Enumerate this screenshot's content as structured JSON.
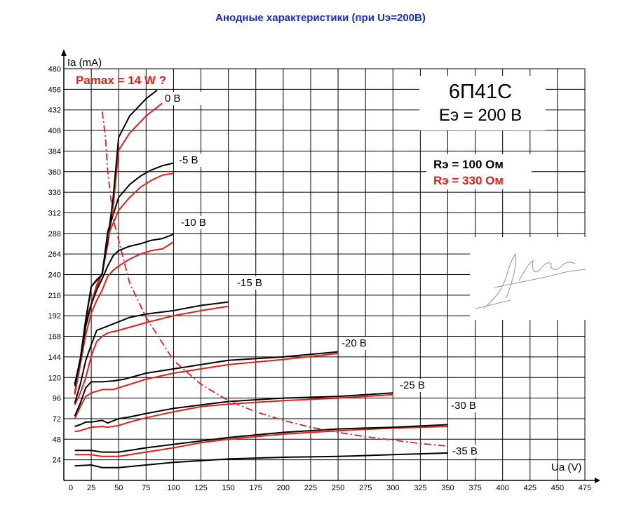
{
  "page": {
    "title": "Анодные характеристики (при Uэ=200В)"
  },
  "chart_data": {
    "type": "line",
    "title": "Анодные характеристики (при Uэ=200В)",
    "xlabel": "Ua (V)",
    "ylabel": "Ia (mA)",
    "xlim": [
      0,
      475
    ],
    "ylim": [
      0,
      480
    ],
    "x_ticks": [
      0,
      25,
      50,
      75,
      100,
      125,
      150,
      175,
      200,
      225,
      250,
      275,
      300,
      325,
      350,
      375,
      400,
      425,
      450,
      475
    ],
    "y_ticks": [
      24,
      48,
      72,
      96,
      120,
      144,
      168,
      192,
      216,
      240,
      264,
      288,
      312,
      336,
      360,
      384,
      408,
      432,
      456,
      480
    ],
    "grid": true,
    "annotations": {
      "tube": "6П41С",
      "supply": "Eэ = 200 В",
      "r_black": "Rэ = 100 Ом",
      "r_red": "Rэ = 330 Ом",
      "pamax": "Pamax = 14 W ?"
    },
    "colors": {
      "black": "#000000",
      "red": "#e0201a",
      "title": "#1a2bbf",
      "grid": "#000000"
    },
    "curves": [
      {
        "label": "0 В",
        "black": [
          [
            10,
            112
          ],
          [
            15,
            142
          ],
          [
            20,
            188
          ],
          [
            25,
            226
          ],
          [
            30,
            234
          ],
          [
            35,
            240
          ],
          [
            40,
            280
          ],
          [
            45,
            330
          ],
          [
            50,
            400
          ],
          [
            60,
            425
          ],
          [
            75,
            445
          ],
          [
            85,
            455
          ]
        ],
        "red": [
          [
            10,
            102
          ],
          [
            15,
            140
          ],
          [
            20,
            185
          ],
          [
            25,
            206
          ],
          [
            30,
            228
          ],
          [
            35,
            242
          ],
          [
            40,
            275
          ],
          [
            45,
            320
          ],
          [
            50,
            385
          ],
          [
            60,
            405
          ],
          [
            75,
            425
          ],
          [
            90,
            440
          ],
          [
            95,
            444
          ]
        ]
      },
      {
        "label": "-5 В",
        "black": [
          [
            10,
            112
          ],
          [
            15,
            140
          ],
          [
            20,
            186
          ],
          [
            25,
            226
          ],
          [
            35,
            240
          ],
          [
            40,
            290
          ],
          [
            45,
            310
          ],
          [
            50,
            330
          ],
          [
            60,
            345
          ],
          [
            70,
            355
          ],
          [
            80,
            362
          ],
          [
            90,
            367
          ],
          [
            100,
            370
          ]
        ],
        "red": [
          [
            10,
            102
          ],
          [
            15,
            140
          ],
          [
            20,
            185
          ],
          [
            25,
            206
          ],
          [
            35,
            242
          ],
          [
            40,
            285
          ],
          [
            45,
            300
          ],
          [
            50,
            315
          ],
          [
            60,
            330
          ],
          [
            70,
            342
          ],
          [
            80,
            350
          ],
          [
            90,
            356
          ],
          [
            100,
            358
          ]
        ]
      },
      {
        "label": "-10 В",
        "black": [
          [
            10,
            110
          ],
          [
            15,
            140
          ],
          [
            20,
            180
          ],
          [
            25,
            205
          ],
          [
            30,
            222
          ],
          [
            35,
            235
          ],
          [
            40,
            250
          ],
          [
            45,
            262
          ],
          [
            50,
            268
          ],
          [
            60,
            273
          ],
          [
            70,
            276
          ],
          [
            80,
            280
          ],
          [
            90,
            282
          ],
          [
            100,
            287
          ]
        ],
        "red": [
          [
            10,
            100
          ],
          [
            15,
            135
          ],
          [
            20,
            170
          ],
          [
            25,
            195
          ],
          [
            30,
            210
          ],
          [
            35,
            222
          ],
          [
            40,
            238
          ],
          [
            45,
            245
          ],
          [
            50,
            250
          ],
          [
            60,
            258
          ],
          [
            70,
            264
          ],
          [
            80,
            268
          ],
          [
            90,
            270
          ],
          [
            100,
            278
          ]
        ]
      },
      {
        "label": "-15 В",
        "black": [
          [
            10,
            90
          ],
          [
            15,
            112
          ],
          [
            20,
            140
          ],
          [
            25,
            158
          ],
          [
            30,
            175
          ],
          [
            40,
            180
          ],
          [
            50,
            185
          ],
          [
            60,
            190
          ],
          [
            75,
            194
          ],
          [
            100,
            198
          ],
          [
            125,
            204
          ],
          [
            150,
            208
          ]
        ],
        "red": [
          [
            10,
            88
          ],
          [
            15,
            102
          ],
          [
            20,
            120
          ],
          [
            25,
            145
          ],
          [
            30,
            162
          ],
          [
            35,
            168
          ],
          [
            40,
            172
          ],
          [
            50,
            175
          ],
          [
            75,
            184
          ],
          [
            100,
            192
          ],
          [
            125,
            198
          ],
          [
            150,
            203
          ]
        ]
      },
      {
        "label": "-20 В",
        "black": [
          [
            10,
            75
          ],
          [
            15,
            90
          ],
          [
            20,
            108
          ],
          [
            25,
            115
          ],
          [
            35,
            115
          ],
          [
            45,
            116
          ],
          [
            55,
            118
          ],
          [
            75,
            125
          ],
          [
            100,
            130
          ],
          [
            150,
            140
          ],
          [
            200,
            144
          ],
          [
            250,
            150
          ]
        ],
        "red": [
          [
            10,
            72
          ],
          [
            15,
            86
          ],
          [
            20,
            98
          ],
          [
            25,
            102
          ],
          [
            35,
            106
          ],
          [
            45,
            106
          ],
          [
            55,
            110
          ],
          [
            75,
            118
          ],
          [
            100,
            125
          ],
          [
            150,
            135
          ],
          [
            200,
            141
          ],
          [
            250,
            148
          ]
        ]
      },
      {
        "label": "-25 В",
        "black": [
          [
            10,
            63
          ],
          [
            15,
            65
          ],
          [
            20,
            68
          ],
          [
            25,
            68
          ],
          [
            35,
            70
          ],
          [
            40,
            67
          ],
          [
            50,
            72
          ],
          [
            60,
            74
          ],
          [
            75,
            78
          ],
          [
            100,
            84
          ],
          [
            125,
            88
          ],
          [
            150,
            92
          ],
          [
            200,
            96
          ],
          [
            250,
            98
          ],
          [
            300,
            102
          ]
        ],
        "red": [
          [
            10,
            57
          ],
          [
            15,
            58
          ],
          [
            20,
            60
          ],
          [
            25,
            62
          ],
          [
            35,
            63
          ],
          [
            40,
            62
          ],
          [
            50,
            64
          ],
          [
            60,
            68
          ],
          [
            75,
            73
          ],
          [
            100,
            80
          ],
          [
            125,
            86
          ],
          [
            150,
            89
          ],
          [
            200,
            93
          ],
          [
            250,
            96
          ],
          [
            300,
            100
          ]
        ]
      },
      {
        "label": "-30 В",
        "black": [
          [
            10,
            35
          ],
          [
            25,
            35
          ],
          [
            35,
            33
          ],
          [
            50,
            33
          ],
          [
            75,
            38
          ],
          [
            100,
            42
          ],
          [
            125,
            46
          ],
          [
            150,
            50
          ],
          [
            200,
            56
          ],
          [
            250,
            60
          ],
          [
            300,
            62
          ],
          [
            350,
            65
          ]
        ],
        "red": [
          [
            10,
            30
          ],
          [
            25,
            30
          ],
          [
            35,
            28
          ],
          [
            50,
            28
          ],
          [
            75,
            33
          ],
          [
            100,
            38
          ],
          [
            125,
            44
          ],
          [
            150,
            48
          ],
          [
            200,
            54
          ],
          [
            250,
            58
          ],
          [
            300,
            61
          ],
          [
            350,
            63
          ]
        ]
      },
      {
        "label": "-35 В",
        "black": [
          [
            10,
            17
          ],
          [
            25,
            18
          ],
          [
            35,
            15
          ],
          [
            50,
            15
          ],
          [
            75,
            18
          ],
          [
            100,
            21
          ],
          [
            150,
            25
          ],
          [
            200,
            27
          ],
          [
            250,
            28
          ],
          [
            300,
            30
          ],
          [
            350,
            32
          ]
        ]
      }
    ],
    "pamax_curve": [
      [
        35,
        430
      ],
      [
        38,
        400
      ],
      [
        40,
        360
      ],
      [
        45,
        305
      ],
      [
        50,
        280
      ],
      [
        60,
        230
      ],
      [
        75,
        190
      ],
      [
        100,
        140
      ],
      [
        125,
        112
      ],
      [
        150,
        93
      ],
      [
        175,
        80
      ],
      [
        200,
        70
      ],
      [
        225,
        62
      ],
      [
        250,
        56
      ],
      [
        275,
        51
      ],
      [
        300,
        47
      ],
      [
        325,
        43
      ],
      [
        350,
        40
      ]
    ]
  }
}
